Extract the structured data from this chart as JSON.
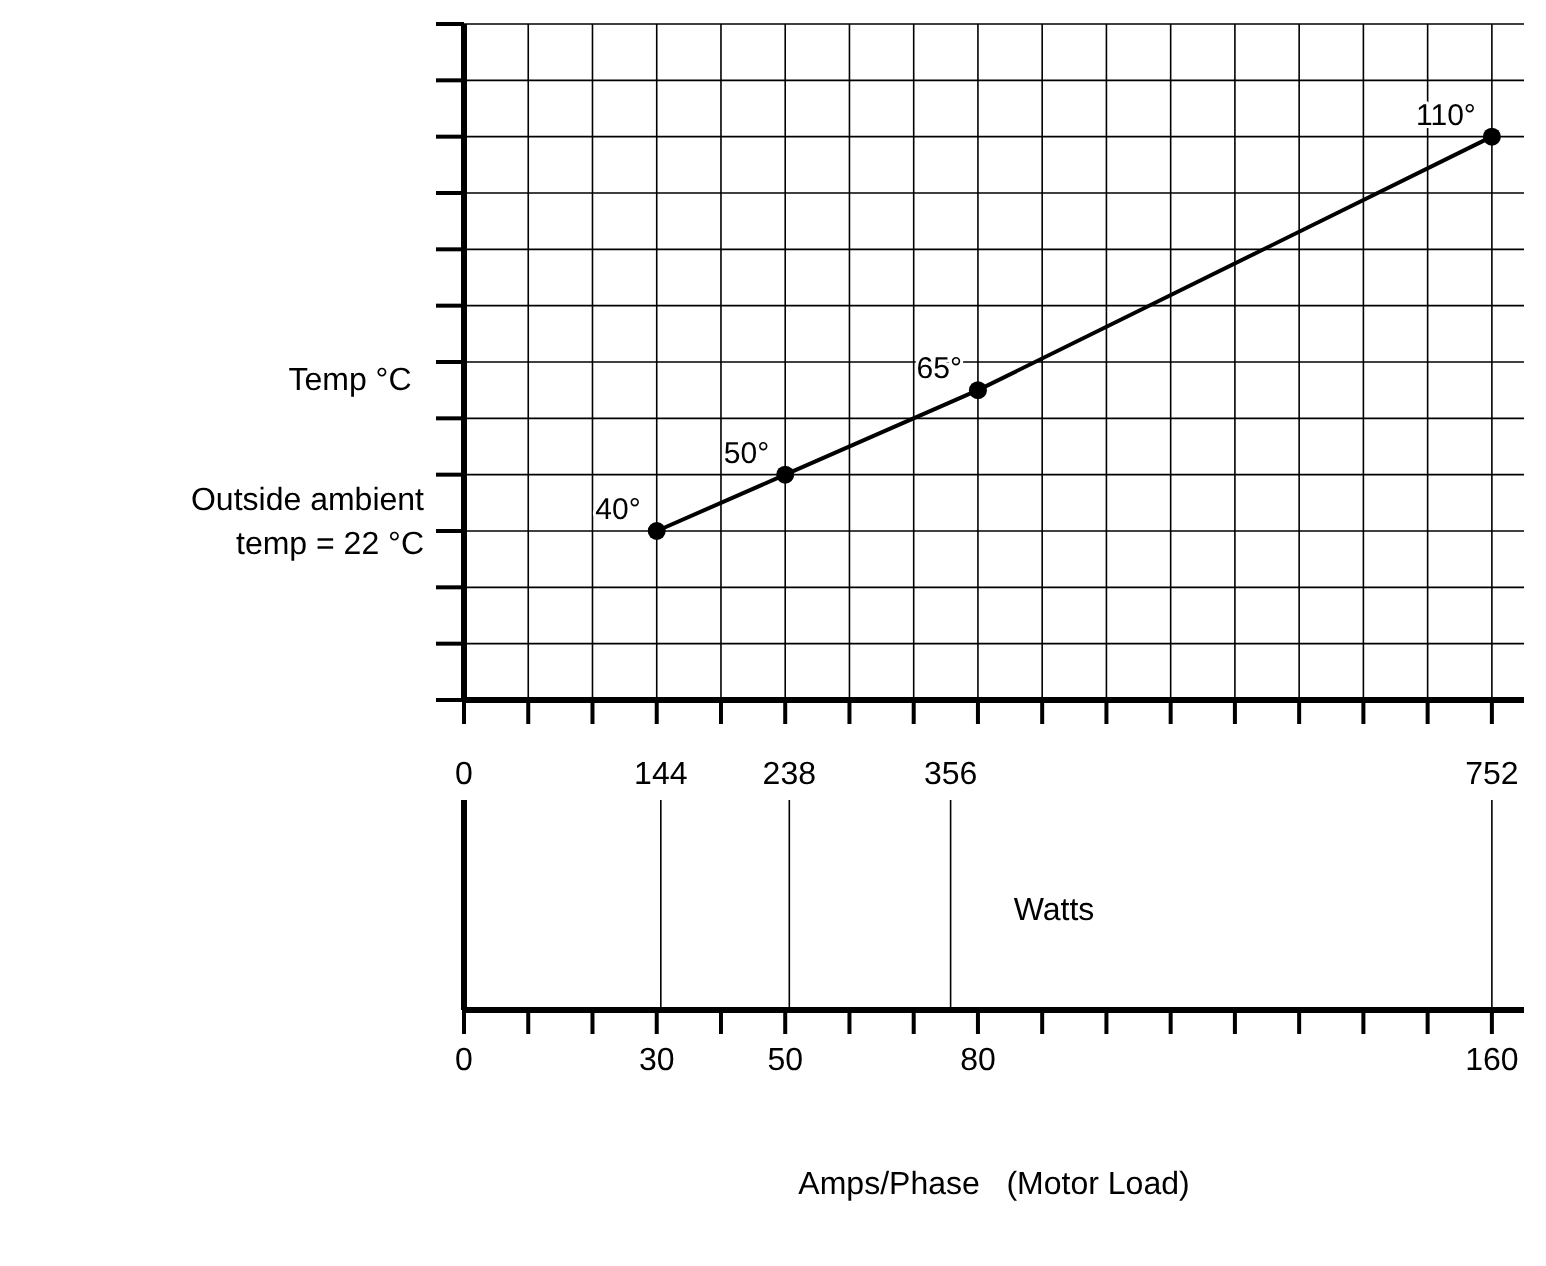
{
  "chart_data": {
    "type": "line",
    "ylabel": "Temp °C",
    "xlabel": "Amps/Phase   (Motor Load)",
    "x2label": "Watts",
    "annotations": [
      "Outside ambient temp = 22 °C"
    ],
    "x": [
      30,
      50,
      80,
      160
    ],
    "series": [
      {
        "color": "#000000",
        "values": [
          40,
          50,
          65,
          110
        ],
        "value_labels": [
          "40°",
          "50°",
          "65°",
          "110°"
        ]
      }
    ],
    "xlim": [
      0,
      165
    ],
    "xticks": [
      0,
      {
        "value": 10,
        "label": null
      },
      {
        "value": 20,
        "label": null
      },
      30,
      {
        "value": 40,
        "label": null
      },
      50,
      {
        "value": 60,
        "label": null
      },
      {
        "value": 70,
        "label": null
      },
      80,
      {
        "value": 90,
        "label": null
      },
      {
        "value": 100,
        "label": null
      },
      {
        "value": 110,
        "label": null
      },
      {
        "value": 120,
        "label": null
      },
      {
        "value": 130,
        "label": null
      },
      {
        "value": 140,
        "label": null
      },
      {
        "value": 150,
        "label": null
      },
      160
    ],
    "ylim": [
      10,
      130
    ],
    "yticks": [
      {
        "value": 10,
        "label": null
      },
      {
        "value": 20,
        "label": null
      },
      {
        "value": 30,
        "label": null
      },
      {
        "value": 40,
        "label": null
      },
      {
        "value": 50,
        "label": null
      },
      {
        "value": 60,
        "label": null
      },
      {
        "value": 70,
        "label": null
      },
      {
        "value": 80,
        "label": null
      },
      {
        "value": 90,
        "label": null
      },
      {
        "value": 100,
        "label": null
      },
      {
        "value": 110,
        "label": null
      },
      {
        "value": 120,
        "label": null
      },
      {
        "value": 130,
        "label": null
      }
    ],
    "x2lim": [
      0,
      775.5
    ],
    "x2ticks": [
      0,
      144,
      238,
      356,
      752
    ],
    "grid": true,
    "marker": "circle",
    "line_style": "solid"
  }
}
